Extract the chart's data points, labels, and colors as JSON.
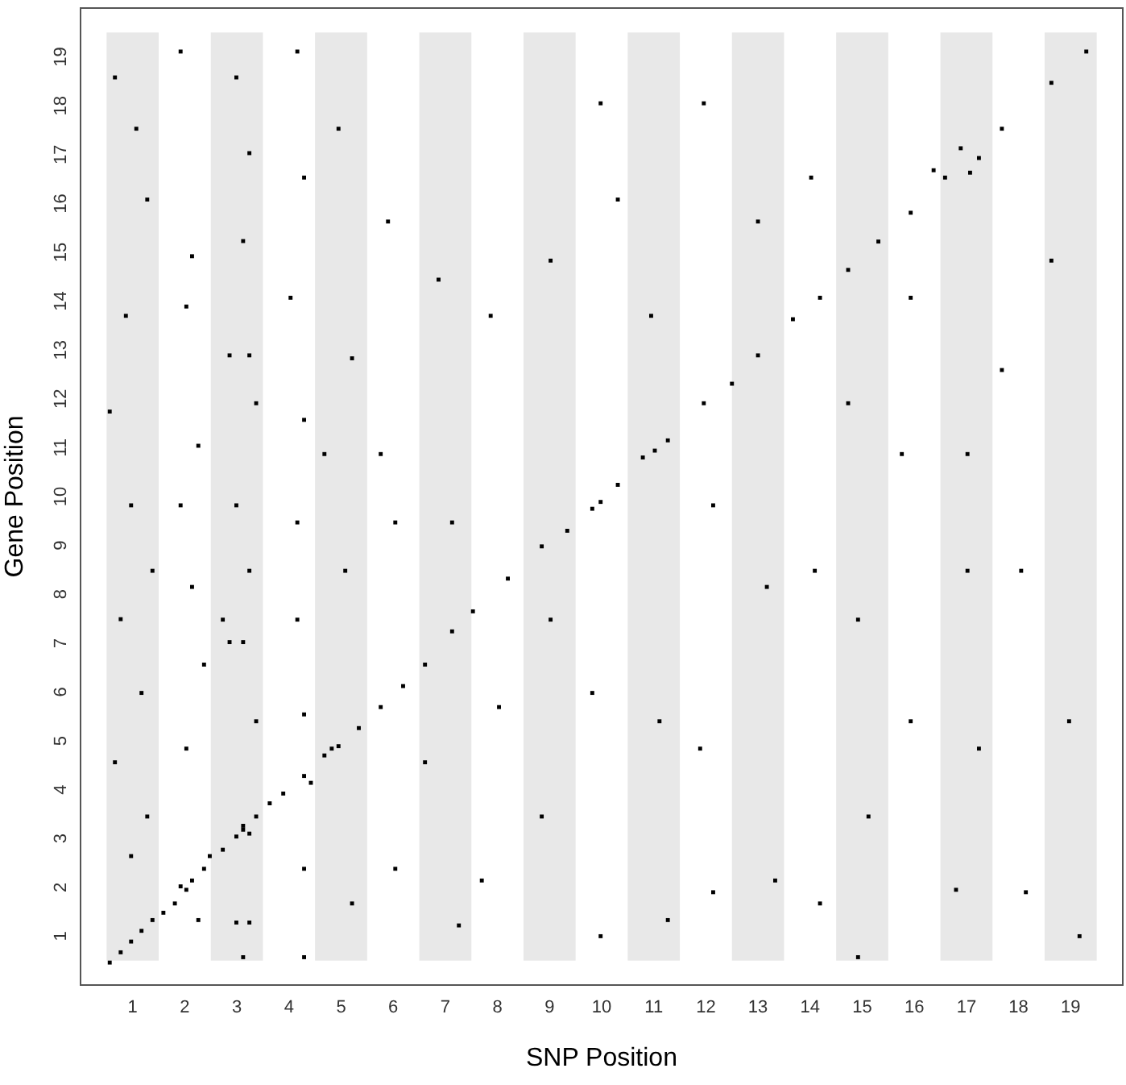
{
  "chart_data": {
    "type": "scatter",
    "xlabel": "SNP Position",
    "ylabel": "Gene Position",
    "marker": "square",
    "grid": false,
    "xlim": [
      0,
      20
    ],
    "ylim": [
      0,
      20
    ],
    "xticks": [
      1,
      2,
      3,
      4,
      5,
      6,
      7,
      8,
      9,
      10,
      11,
      12,
      13,
      14,
      15,
      16,
      17,
      18,
      19
    ],
    "yticks": [
      1,
      2,
      3,
      4,
      5,
      6,
      7,
      8,
      9,
      10,
      11,
      12,
      13,
      14,
      15,
      16,
      17,
      18,
      19
    ],
    "bands": [
      {
        "axis": "x",
        "from": 0.5,
        "to": 1.5,
        "color": "#e8e8e8"
      },
      {
        "axis": "x",
        "from": 2.5,
        "to": 3.5,
        "color": "#e8e8e8"
      },
      {
        "axis": "x",
        "from": 4.5,
        "to": 5.5,
        "color": "#e8e8e8"
      },
      {
        "axis": "x",
        "from": 6.5,
        "to": 7.5,
        "color": "#e8e8e8"
      },
      {
        "axis": "x",
        "from": 8.5,
        "to": 9.5,
        "color": "#e8e8e8"
      },
      {
        "axis": "x",
        "from": 10.5,
        "to": 11.5,
        "color": "#e8e8e8"
      },
      {
        "axis": "x",
        "from": 12.5,
        "to": 13.5,
        "color": "#e8e8e8"
      },
      {
        "axis": "x",
        "from": 14.5,
        "to": 15.5,
        "color": "#e8e8e8"
      },
      {
        "axis": "x",
        "from": 16.5,
        "to": 17.5,
        "color": "#e8e8e8"
      },
      {
        "axis": "x",
        "from": 18.5,
        "to": 19.5,
        "color": "#e8e8e8"
      }
    ],
    "series": [
      {
        "color": "#000000",
        "x": [
          0.56,
          0.77,
          0.97,
          1.17,
          1.38,
          1.59,
          1.81,
          2.03,
          2.14,
          2.37,
          2.73,
          3.12,
          3.37,
          3.63,
          3.89,
          4.29,
          4.68,
          4.95,
          5.34,
          5.76,
          6.19,
          6.61,
          7.13,
          7.53,
          8.2,
          8.85,
          9.34,
          9.82,
          10.31,
          10.79,
          11.27,
          11.96,
          12.5,
          13.0,
          13.67,
          14.19,
          14.73,
          15.31,
          15.93,
          16.59,
          17.68,
          18.63,
          19.3,
          3.12,
          2.99,
          3.24,
          1.92,
          4.42,
          9.98,
          11.02,
          16.37,
          16.89,
          17.24,
          17.07,
          0.66,
          1.07,
          1.28,
          0.87,
          0.56,
          0.97,
          1.38,
          0.77,
          1.17,
          0.66,
          1.28,
          0.97,
          1.92,
          2.14,
          2.03,
          2.26,
          1.92,
          2.14,
          2.37,
          2.03,
          2.26,
          2.48,
          2.99,
          3.24,
          3.12,
          2.86,
          3.24,
          3.37,
          2.99,
          3.24,
          2.86,
          3.12,
          2.73,
          3.37,
          2.99,
          3.24,
          3.12,
          4.16,
          4.29,
          4.03,
          4.29,
          4.16,
          4.16,
          4.29,
          4.29,
          4.29,
          4.95,
          5.21,
          4.68,
          5.08,
          4.82,
          5.21,
          5.9,
          5.76,
          6.04,
          6.04,
          6.87,
          7.13,
          6.61,
          7.26,
          7.87,
          8.03,
          7.7,
          9.02,
          9.02,
          8.85,
          9.98,
          9.82,
          9.98,
          10.31,
          10.95,
          11.11,
          11.27,
          11.96,
          12.14,
          11.89,
          12.14,
          13.0,
          13.17,
          13.33,
          14.02,
          14.09,
          14.19,
          14.73,
          14.92,
          15.12,
          14.92,
          15.93,
          15.93,
          15.76,
          17.02,
          17.02,
          16.8,
          17.24,
          17.68,
          18.05,
          18.14,
          18.63,
          18.97,
          19.17
        ],
        "values": [
          0.46,
          0.67,
          0.89,
          1.11,
          1.33,
          1.48,
          1.67,
          1.95,
          2.14,
          2.38,
          2.77,
          3.18,
          3.45,
          3.72,
          3.92,
          4.28,
          4.7,
          4.89,
          5.26,
          5.69,
          6.12,
          6.56,
          7.24,
          7.65,
          8.32,
          8.98,
          9.3,
          9.75,
          10.24,
          10.8,
          11.15,
          11.91,
          12.31,
          12.89,
          13.63,
          14.07,
          14.64,
          15.22,
          15.81,
          16.53,
          17.53,
          18.47,
          19.11,
          3.26,
          3.04,
          3.1,
          2.02,
          4.14,
          9.89,
          10.94,
          16.68,
          17.13,
          16.93,
          16.63,
          18.58,
          17.53,
          16.08,
          13.7,
          11.74,
          9.82,
          8.48,
          7.49,
          5.98,
          4.56,
          3.45,
          2.64,
          19.11,
          14.92,
          13.89,
          11.04,
          9.82,
          8.15,
          6.56,
          4.84,
          1.33,
          2.64,
          18.58,
          17.03,
          15.23,
          12.89,
          12.89,
          11.91,
          9.82,
          8.48,
          7.02,
          7.02,
          7.48,
          5.4,
          1.28,
          1.28,
          0.57,
          19.11,
          16.53,
          14.07,
          11.57,
          9.47,
          7.48,
          5.54,
          2.38,
          0.57,
          17.53,
          12.83,
          10.87,
          8.48,
          4.84,
          1.67,
          15.63,
          10.87,
          9.47,
          2.38,
          14.44,
          9.47,
          4.56,
          1.22,
          13.7,
          5.69,
          2.14,
          14.83,
          7.48,
          3.45,
          18.05,
          5.98,
          1.0,
          16.08,
          13.7,
          5.4,
          1.33,
          18.05,
          9.82,
          4.84,
          1.9,
          15.63,
          8.15,
          2.14,
          16.53,
          8.48,
          1.67,
          11.91,
          7.48,
          3.45,
          0.57,
          14.07,
          5.4,
          10.87,
          10.87,
          8.48,
          1.95,
          4.84,
          12.59,
          8.48,
          1.9,
          14.83,
          5.4,
          1.0
        ]
      }
    ]
  }
}
